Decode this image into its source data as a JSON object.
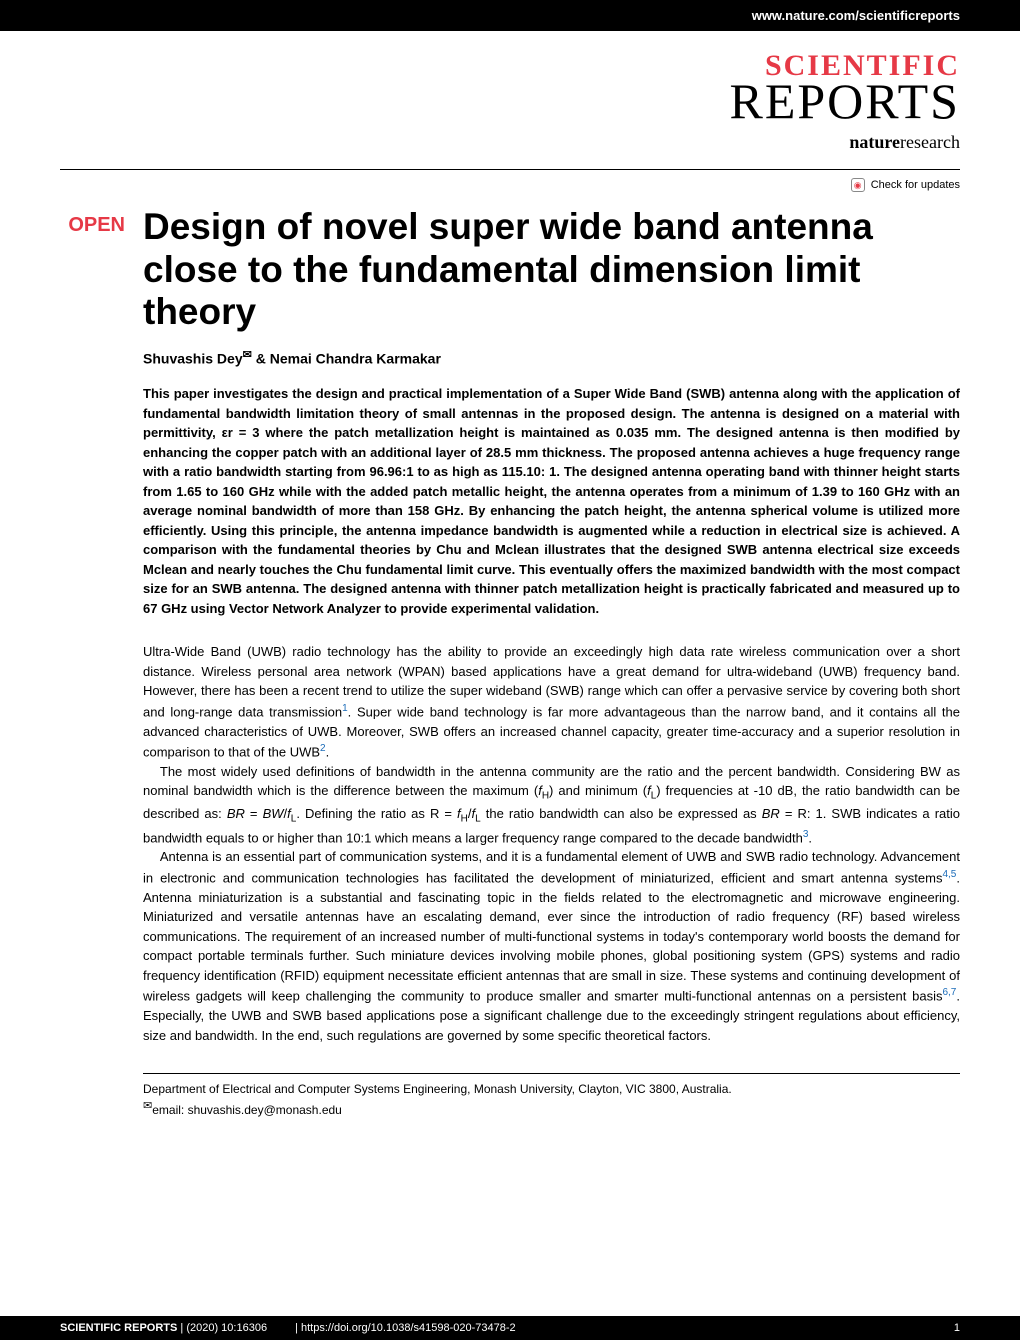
{
  "header": {
    "url": "www.nature.com/scientificreports",
    "logo_top": "SCIENTIFIC",
    "logo_bottom": "REPORTS",
    "logo_top_color": "#e63946",
    "nature_bold": "nature",
    "nature_rest": "research",
    "check_updates": "Check for updates"
  },
  "open_label": "OPEN",
  "title": "Design of novel super wide band antenna close to the fundamental dimension limit theory",
  "authors": {
    "a1": "Shuvashis Dey",
    "corresponding_symbol": "✉",
    "sep": " & ",
    "a2": "Nemai Chandra Karmakar"
  },
  "abstract": "This paper investigates the design and practical implementation of a Super Wide Band (SWB) antenna along with the application of fundamental bandwidth limitation theory of small antennas in the proposed design. The antenna is designed on a material with permittivity, εr = 3 where the patch metallization height is maintained as 0.035 mm. The designed antenna is then modified by enhancing the copper patch with an additional layer of 28.5 mm thickness. The proposed antenna achieves a huge frequency range with a ratio bandwidth starting from 96.96:1 to as high as 115.10: 1. The designed antenna operating band with thinner height starts from 1.65 to 160 GHz while with the added patch metallic height, the antenna operates from a minimum of 1.39 to 160 GHz with an average nominal bandwidth of more than 158 GHz. By enhancing the patch height, the antenna spherical volume is utilized more efficiently. Using this principle, the antenna impedance bandwidth is augmented while a reduction in electrical size is achieved. A comparison with the fundamental theories by Chu and Mclean illustrates that the designed SWB antenna electrical size exceeds Mclean and nearly touches the Chu fundamental limit curve. This eventually offers the maximized bandwidth with the most compact size for an SWB antenna. The designed antenna with thinner patch metallization height is practically fabricated and measured up to 67 GHz using Vector Network Analyzer to provide experimental validation.",
  "body": {
    "p1_a": "Ultra-Wide Band (UWB) radio technology has the ability to provide an exceedingly high data rate wireless communication over a short distance. Wireless personal area network (WPAN) based applications have a great demand for ultra-wideband (UWB) frequency band. However, there has been a recent trend to utilize the super wideband (SWB) range which can offer a pervasive service by covering both short and long-range data transmission",
    "p1_ref1": "1",
    "p1_b": ". Super wide band technology is far more advantageous than the narrow band, and it contains all the advanced characteristics of UWB. Moreover, SWB offers an increased channel capacity, greater time-accuracy and a superior resolution in comparison to that of the UWB",
    "p1_ref2": "2",
    "p1_c": ".",
    "p2_a": "The most widely used definitions of bandwidth in the antenna community are the ratio and the percent bandwidth. Considering BW as nominal bandwidth which is the difference between the maximum (",
    "p2_fh": "f",
    "p2_fh_sub": "H",
    "p2_b": ") and minimum (",
    "p2_fl": "f",
    "p2_fl_sub": "L",
    "p2_c": ") frequencies at -10 dB, the ratio bandwidth can be described as: ",
    "p2_br": "BR",
    "p2_eq1": " = ",
    "p2_bw": "BW",
    "p2_slash": "/",
    "p2_d": ". Defining the ratio as R = ",
    "p2_e": " the ratio bandwidth can also be expressed as ",
    "p2_eq2": " = R: 1. SWB indicates a ratio bandwidth equals to or higher than 10:1 which means a larger frequency range compared to the decade bandwidth",
    "p2_ref3": "3",
    "p2_f": ".",
    "p3_a": "Antenna is an essential part of communication systems, and it is a fundamental element of UWB and SWB radio technology. Advancement in electronic and communication technologies has facilitated the development of miniaturized, efficient and smart antenna systems",
    "p3_ref45": "4,5",
    "p3_b": ". Antenna miniaturization is a substantial and fascinating topic in the fields related to the electromagnetic and microwave engineering. Miniaturized and versatile antennas have an escalating demand, ever since the introduction of radio frequency (RF) based wireless communications. The requirement of an increased number of multi-functional systems in today's contemporary world boosts the demand for compact portable terminals further. Such miniature devices involving mobile phones, global positioning system (GPS) systems and radio frequency identification (RFID) equipment necessitate efficient antennas that are small in size. These systems and continuing development of wireless gadgets will keep challenging the community to produce smaller and smarter multi-functional antennas on a persistent basis",
    "p3_ref67": "6,7",
    "p3_c": ". Especially, the UWB and SWB based applications pose a significant challenge due to the exceedingly stringent regulations about efficiency, size and bandwidth. In the end, such regulations are governed by some specific theoretical factors."
  },
  "affiliation": {
    "dept": "Department of Electrical and Computer Systems Engineering, Monash University, Clayton, VIC 3800, Australia.",
    "email_symbol": "✉",
    "email_label": "email: ",
    "email": "shuvashis.dey@monash.edu"
  },
  "footer": {
    "journal": "SCIENTIFIC REPORTS",
    "sep": " | ",
    "citation": "(2020) 10:16306",
    "doi": "| https://doi.org/10.1038/s41598-020-73478-2",
    "page": "1"
  }
}
